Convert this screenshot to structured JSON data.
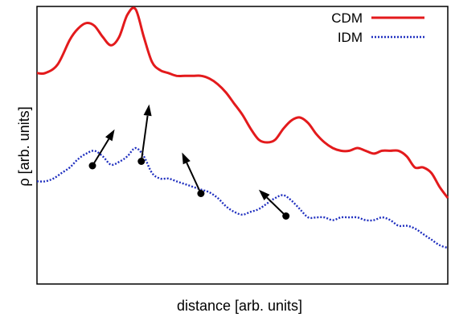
{
  "chart_data": {
    "type": "line",
    "title": "",
    "xlabel": "distance [arb. units]",
    "ylabel": "ρ [arb. units]",
    "xlim": [
      0,
      100
    ],
    "ylim": [
      0,
      100
    ],
    "grid": false,
    "show_tick_labels": false,
    "legend_position": "top-right",
    "series": [
      {
        "name": "CDM",
        "color": "#e31a1c",
        "style": "solid",
        "x": [
          0,
          2,
          5,
          8,
          10,
          12,
          14,
          16,
          18,
          20,
          22,
          24,
          26,
          28,
          30,
          32,
          34,
          36,
          38,
          40,
          42,
          44,
          46,
          48,
          50,
          52,
          54,
          56,
          58,
          60,
          62,
          64,
          66,
          68,
          70,
          72,
          74,
          76,
          78,
          80,
          82,
          84,
          86,
          88,
          90,
          92,
          94,
          96,
          98,
          100
        ],
        "y": [
          76,
          76,
          79,
          88,
          92,
          94,
          93,
          89,
          86,
          89,
          97,
          99,
          89,
          80,
          77,
          76,
          75,
          75,
          75,
          75,
          74,
          72,
          69,
          65,
          61,
          56,
          52,
          51,
          52,
          56,
          59,
          60,
          58,
          54,
          51,
          49,
          48,
          48,
          49,
          48,
          47,
          48,
          48,
          48,
          46,
          42,
          42,
          40,
          35,
          31
        ]
      },
      {
        "name": "IDM",
        "color": "#1f2fbf",
        "style": "dotted",
        "x": [
          0,
          2,
          4,
          6,
          8,
          10,
          12,
          14,
          16,
          18,
          20,
          22,
          24,
          26,
          28,
          30,
          32,
          34,
          36,
          38,
          40,
          42,
          44,
          46,
          48,
          50,
          52,
          54,
          56,
          58,
          60,
          62,
          64,
          66,
          68,
          70,
          72,
          74,
          76,
          78,
          80,
          82,
          84,
          86,
          88,
          90,
          92,
          94,
          96,
          98,
          100
        ],
        "y": [
          37,
          37,
          38,
          40,
          42,
          45,
          47,
          48,
          46,
          43,
          44,
          46,
          49,
          46,
          40,
          38,
          38,
          37,
          36,
          35,
          34,
          33,
          31,
          28,
          26,
          25,
          26,
          27,
          29,
          31,
          32,
          30,
          27,
          24,
          24,
          24,
          23,
          24,
          24,
          24,
          23,
          23,
          24,
          23,
          21,
          21,
          20,
          18,
          16,
          14,
          13
        ]
      }
    ],
    "arrows": [
      {
        "from": [
          13.5,
          42.6
        ],
        "to": [
          18.9,
          55.7
        ]
      },
      {
        "from": [
          25.4,
          44.2
        ],
        "to": [
          27.3,
          64.7
        ]
      },
      {
        "from": [
          39.9,
          32.6
        ],
        "to": [
          35.3,
          47.4
        ]
      },
      {
        "from": [
          60.6,
          24.5
        ],
        "to": [
          54.0,
          34.0
        ]
      }
    ],
    "colors": {
      "axis": "#000000",
      "arrow": "#000000",
      "background": "#ffffff"
    }
  }
}
